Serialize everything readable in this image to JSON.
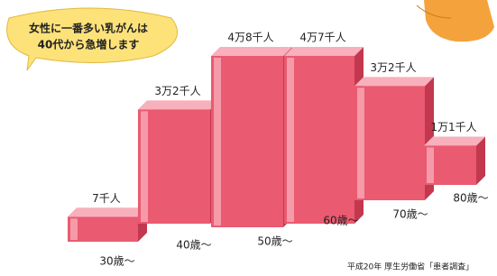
{
  "chart_data": {
    "type": "bar",
    "callout": [
      "女性に一番多い乳がんは",
      "40代から急増します"
    ],
    "categories": [
      "30歳〜",
      "40歳〜",
      "50歳〜",
      "60歳〜",
      "70歳〜",
      "80歳〜"
    ],
    "values": [
      7,
      32,
      48,
      47,
      32,
      11
    ],
    "value_labels": [
      "7千人",
      "3万2千人",
      "4万8千人",
      "4万7千人",
      "3万2千人",
      "1万1千人"
    ],
    "color": "#ea5a70",
    "source": "平成20年 厚生労働省「患者調査」"
  }
}
